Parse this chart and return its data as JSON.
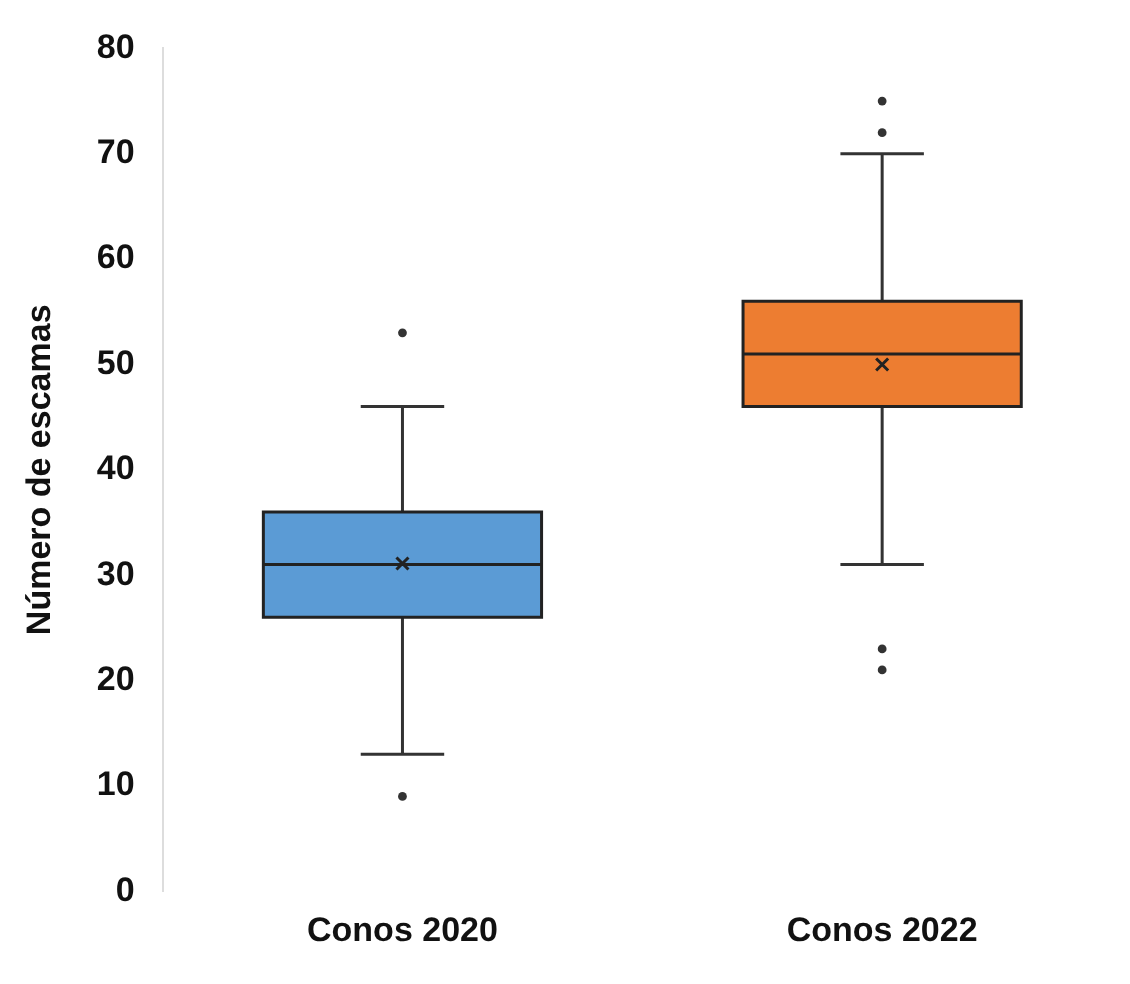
{
  "chart_data": {
    "type": "box",
    "ylabel": "Número de escamas",
    "categories": [
      "Conos 2020",
      "Conos 2022"
    ],
    "colors": [
      "#5b9bd5",
      "#ed7d31"
    ],
    "boxes": [
      {
        "low": 13,
        "q1": 26,
        "median": 31,
        "q3": 36,
        "high": 46,
        "mean": 31.1,
        "outliers": [
          53,
          9
        ]
      },
      {
        "low": 31,
        "q1": 46,
        "median": 51,
        "q3": 56,
        "high": 70,
        "mean": 50,
        "outliers": [
          75,
          72,
          23,
          21
        ]
      }
    ],
    "ylim": [
      0,
      80
    ],
    "yticks": [
      0,
      10,
      20,
      30,
      40,
      50,
      60,
      70,
      80
    ],
    "grid": false,
    "legend": false
  }
}
